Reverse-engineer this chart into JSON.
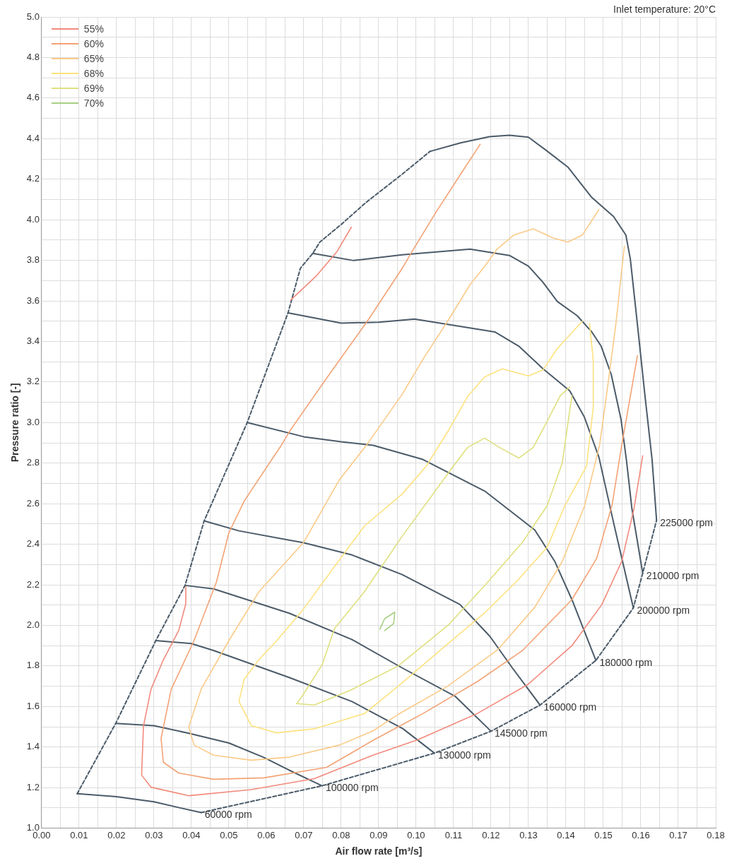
{
  "chart_data": {
    "type": "line",
    "xlabel": "Air flow rate [m³/s]",
    "ylabel": "Pressure ratio [-]",
    "xlim": [
      0,
      0.18
    ],
    "ylim": [
      1,
      5
    ],
    "xticks": [
      {
        "value": 0,
        "label": "0.00"
      },
      {
        "value": 0.005,
        "label": null
      },
      {
        "value": 0.01,
        "label": "0.01"
      },
      {
        "value": 0.015,
        "label": null
      },
      {
        "value": 0.02,
        "label": "0.02"
      },
      {
        "value": 0.025,
        "label": null
      },
      {
        "value": 0.03,
        "label": "0.03"
      },
      {
        "value": 0.035,
        "label": null
      },
      {
        "value": 0.04,
        "label": "0.04"
      },
      {
        "value": 0.045,
        "label": null
      },
      {
        "value": 0.05,
        "label": "0.05"
      },
      {
        "value": 0.055,
        "label": null
      },
      {
        "value": 0.06,
        "label": "0.06"
      },
      {
        "value": 0.065,
        "label": null
      },
      {
        "value": 0.07,
        "label": "0.07"
      },
      {
        "value": 0.075,
        "label": null
      },
      {
        "value": 0.08,
        "label": "0.08"
      },
      {
        "value": 0.085,
        "label": null
      },
      {
        "value": 0.09,
        "label": "0.09"
      },
      {
        "value": 0.095,
        "label": null
      },
      {
        "value": 0.1,
        "label": "0.10"
      },
      {
        "value": 0.105,
        "label": null
      },
      {
        "value": 0.11,
        "label": "0.11"
      },
      {
        "value": 0.115,
        "label": null
      },
      {
        "value": 0.12,
        "label": "0.12"
      },
      {
        "value": 0.125,
        "label": null
      },
      {
        "value": 0.13,
        "label": "0.13"
      },
      {
        "value": 0.135,
        "label": null
      },
      {
        "value": 0.14,
        "label": "0.14"
      },
      {
        "value": 0.145,
        "label": null
      },
      {
        "value": 0.15,
        "label": "0.15"
      },
      {
        "value": 0.155,
        "label": null
      },
      {
        "value": 0.16,
        "label": "0.16"
      },
      {
        "value": 0.165,
        "label": null
      },
      {
        "value": 0.17,
        "label": "0.17"
      },
      {
        "value": 0.175,
        "label": null
      },
      {
        "value": 0.18,
        "label": "0.18"
      }
    ],
    "yticks": [
      {
        "value": 1,
        "label": "1.0"
      },
      {
        "value": 1.1,
        "label": null
      },
      {
        "value": 1.2,
        "label": "1.2"
      },
      {
        "value": 1.3,
        "label": null
      },
      {
        "value": 1.4,
        "label": "1.4"
      },
      {
        "value": 1.5,
        "label": null
      },
      {
        "value": 1.6,
        "label": "1.6"
      },
      {
        "value": 1.7,
        "label": null
      },
      {
        "value": 1.8,
        "label": "1.8"
      },
      {
        "value": 1.9,
        "label": null
      },
      {
        "value": 2,
        "label": "2.0"
      },
      {
        "value": 2.1,
        "label": null
      },
      {
        "value": 2.2,
        "label": "2.2"
      },
      {
        "value": 2.3,
        "label": null
      },
      {
        "value": 2.4,
        "label": "2.4"
      },
      {
        "value": 2.5,
        "label": null
      },
      {
        "value": 2.6,
        "label": "2.6"
      },
      {
        "value": 2.7,
        "label": null
      },
      {
        "value": 2.8,
        "label": "2.8"
      },
      {
        "value": 2.9,
        "label": null
      },
      {
        "value": 3,
        "label": "3.0"
      },
      {
        "value": 3.1,
        "label": null
      },
      {
        "value": 3.2,
        "label": "3.2"
      },
      {
        "value": 3.3,
        "label": null
      },
      {
        "value": 3.4,
        "label": "3.4"
      },
      {
        "value": 3.5,
        "label": null
      },
      {
        "value": 3.6,
        "label": "3.6"
      },
      {
        "value": 3.7,
        "label": null
      },
      {
        "value": 3.8,
        "label": "3.8"
      },
      {
        "value": 3.9,
        "label": null
      },
      {
        "value": 4,
        "label": "4.0"
      },
      {
        "value": 4.1,
        "label": null
      },
      {
        "value": 4.2,
        "label": "4.2"
      },
      {
        "value": 4.3,
        "label": null
      },
      {
        "value": 4.4,
        "label": "4.4"
      },
      {
        "value": 4.5,
        "label": null
      },
      {
        "value": 4.6,
        "label": "4.6"
      },
      {
        "value": 4.7,
        "label": null
      },
      {
        "value": 4.8,
        "label": "4.8"
      },
      {
        "value": 4.9,
        "label": null
      },
      {
        "value": 5,
        "label": "5.0"
      }
    ],
    "grid": true,
    "legend": "top left",
    "marker": "none",
    "line_style": "solid",
    "series": [
      {
        "name": "55%",
        "color": "#f28a7c",
        "x": [
          0.0385,
          0.0385,
          0.0366,
          0.0325,
          0.0292,
          0.0272,
          0.0267,
          0.0292,
          0.0393,
          0.056,
          0.0728,
          0.0885,
          0.1004,
          0.1163,
          0.1298,
          0.1416,
          0.1496,
          0.1549,
          0.1582,
          0.1605,
          null,
          0.0665,
          0.0735,
          0.0788,
          0.0827
        ],
        "values": [
          2.19,
          2.106,
          1.974,
          1.83,
          1.684,
          1.503,
          1.262,
          1.202,
          1.16,
          1.19,
          1.244,
          1.36,
          1.436,
          1.565,
          1.708,
          1.9,
          2.103,
          2.316,
          2.578,
          2.836,
          null,
          3.604,
          3.726,
          3.841,
          3.963
        ]
      },
      {
        "name": "60%",
        "color": "#f4a274",
        "x": [
          0.1171,
          0.1119,
          0.1054,
          0.0988,
          0.0963,
          0.0872,
          0.0768,
          0.0665,
          0.064,
          0.0541,
          0.05,
          0.0467,
          0.0407,
          0.0346,
          0.0319,
          0.0325,
          0.0366,
          0.0459,
          0.0593,
          0.0761,
          0.0885,
          0.1018,
          0.1163,
          0.1284,
          0.1416,
          0.1482,
          0.1523,
          0.1549,
          0.1591
        ],
        "values": [
          4.372,
          4.225,
          4.04,
          3.84,
          3.761,
          3.506,
          3.237,
          2.965,
          2.888,
          2.613,
          2.456,
          2.215,
          1.925,
          1.684,
          1.443,
          1.325,
          1.272,
          1.241,
          1.248,
          1.3,
          1.433,
          1.565,
          1.722,
          1.876,
          2.127,
          2.33,
          2.592,
          2.888,
          3.33
        ]
      },
      {
        "name": "65%",
        "color": "#fbca88",
        "x": [
          0.1488,
          0.1444,
          0.1405,
          0.1366,
          0.1313,
          0.1261,
          0.1216,
          0.1183,
          0.1144,
          0.1086,
          0.1021,
          0.0963,
          0.0868,
          0.0796,
          0.07,
          0.058,
          0.05,
          0.0426,
          0.0393,
          0.0407,
          0.0459,
          0.056,
          0.0661,
          0.0796,
          0.0885,
          0.0951,
          0.1084,
          0.1218,
          0.1317,
          0.139,
          0.145,
          0.149,
          0.1508,
          0.1533,
          0.1556
        ],
        "values": [
          4.05,
          3.925,
          3.89,
          3.91,
          3.955,
          3.925,
          3.855,
          3.77,
          3.68,
          3.505,
          3.32,
          3.14,
          2.89,
          2.72,
          2.41,
          2.165,
          1.925,
          1.685,
          1.5,
          1.41,
          1.36,
          1.335,
          1.35,
          1.41,
          1.48,
          1.56,
          1.7,
          1.88,
          2.09,
          2.315,
          2.59,
          2.89,
          3.13,
          3.48,
          3.87
        ]
      },
      {
        "name": "68%",
        "color": "#fde27e",
        "x": [
          0.1444,
          0.1377,
          0.1339,
          0.13,
          0.123,
          0.1183,
          0.1138,
          0.1086,
          0.1027,
          0.0963,
          0.0862,
          0.0782,
          0.0695,
          0.0628,
          0.058,
          0.0541,
          0.0527,
          0.056,
          0.0628,
          0.0728,
          0.0862,
          0.0952,
          0.1085,
          0.1185,
          0.127,
          0.135,
          0.1397,
          0.1455,
          0.1473,
          0.1473,
          0.1463
        ],
        "values": [
          3.5,
          3.365,
          3.26,
          3.23,
          3.265,
          3.225,
          3.13,
          2.96,
          2.785,
          2.648,
          2.49,
          2.29,
          2.07,
          1.925,
          1.83,
          1.735,
          1.625,
          1.505,
          1.47,
          1.49,
          1.565,
          1.7,
          1.91,
          2.065,
          2.22,
          2.385,
          2.59,
          2.785,
          3.075,
          3.305,
          3.49
        ]
      },
      {
        "name": "69%",
        "color": "#dfe07e",
        "x": [
          0.141,
          0.1385,
          0.1346,
          0.1313,
          0.1274,
          0.1222,
          0.1183,
          0.1138,
          0.1099,
          0.0963,
          0.0862,
          0.0782,
          0.0749,
          0.0695,
          0.0681,
          0.0728,
          0.0829,
          0.0952,
          0.1085,
          0.1185,
          0.1284,
          0.135,
          0.139,
          0.1416
        ],
        "values": [
          3.175,
          3.133,
          2.993,
          2.878,
          2.825,
          2.878,
          2.923,
          2.878,
          2.784,
          2.44,
          2.166,
          1.984,
          1.806,
          1.649,
          1.614,
          1.607,
          1.684,
          1.8,
          2,
          2.2,
          2.41,
          2.59,
          2.8,
          3.133
        ]
      },
      {
        "name": "70%",
        "color": "#a8cf84",
        "x": [
          0.0903,
          0.0916,
          0.0943,
          0.094,
          0.0916
        ],
        "values": [
          1.981,
          2.033,
          2.065,
          2.009,
          1.974
        ]
      },
      {
        "color": "#4b5b69",
        "x": [
          0.0095,
          0.02,
          0.03,
          0.037,
          0.0426
        ],
        "values": [
          1.17,
          1.155,
          1.13,
          1.1,
          1.077
        ]
      },
      {
        "color": "#4b5b69",
        "x": [
          0.0198,
          0.03,
          0.0393,
          0.05,
          0.0593,
          0.0661,
          0.0749
        ],
        "values": [
          1.517,
          1.505,
          1.468,
          1.42,
          1.349,
          1.286,
          1.209
        ]
      },
      {
        "color": "#4b5b69",
        "x": [
          0.0305,
          0.04,
          0.0459,
          0.0661,
          0.0829,
          0.0965,
          0.1049
        ],
        "values": [
          1.925,
          1.91,
          1.876,
          1.743,
          1.624,
          1.49,
          1.37
        ]
      },
      {
        "color": "#4b5b69",
        "x": [
          0.0383,
          0.0459,
          0.0661,
          0.0829,
          0.0963,
          0.1105,
          0.12
        ],
        "values": [
          2.197,
          2.18,
          2.06,
          1.93,
          1.79,
          1.649,
          1.478
        ]
      },
      {
        "color": "#4b5b69",
        "x": [
          0.0434,
          0.0527,
          0.07,
          0.0829,
          0.0963,
          0.1117,
          0.1197,
          0.1257,
          0.1331
        ],
        "values": [
          2.515,
          2.466,
          2.407,
          2.347,
          2.25,
          2.103,
          1.946,
          1.79,
          1.607
        ]
      },
      {
        "color": "#4b5b69",
        "x": [
          0.0549,
          0.07,
          0.08,
          0.0885,
          0.1018,
          0.1185,
          0.1317,
          0.137,
          0.1416,
          0.148
        ],
        "values": [
          3,
          2.93,
          2.905,
          2.888,
          2.818,
          2.66,
          2.47,
          2.316,
          2.127,
          1.827
        ]
      },
      {
        "color": "#4b5b69",
        "x": [
          0.0658,
          0.08,
          0.09,
          0.0996,
          0.121,
          0.1274,
          0.1339,
          0.141,
          0.1449,
          0.1488,
          0.1528,
          0.158
        ],
        "values": [
          3.541,
          3.49,
          3.495,
          3.51,
          3.447,
          3.377,
          3.265,
          3.157,
          3.028,
          2.83,
          2.5,
          2.086
        ]
      },
      {
        "color": "#4b5b69",
        "x": [
          0.0724,
          0.0833,
          0.0963,
          0.1144,
          0.1249,
          0.13,
          0.1339,
          0.1377,
          0.143,
          0.1469,
          0.1494,
          0.1521,
          0.1547,
          0.1562,
          0.1576,
          0.1605
        ],
        "values": [
          3.834,
          3.799,
          3.827,
          3.855,
          3.824,
          3.771,
          3.691,
          3.597,
          3.527,
          3.447,
          3.377,
          3.237,
          3.017,
          2.808,
          2.578,
          2.257
        ]
      },
      {
        "color": "#4b5b69",
        "x": [
          0.1037,
          0.1119,
          0.1196,
          0.1249,
          0.13,
          0.1346,
          0.1405,
          0.1469,
          0.1527,
          0.156,
          0.1572,
          0.1591,
          0.1611,
          0.163,
          0.1642
        ],
        "values": [
          4.337,
          4.379,
          4.41,
          4.417,
          4.407,
          4.344,
          4.26,
          4.11,
          4.016,
          3.925,
          3.806,
          3.482,
          3.133,
          2.818,
          2.518
        ]
      },
      {
        "color": "#4b5b69",
        "line_style": "dashed",
        "x": [
          0.0095,
          0.0198,
          0.0305,
          0.0383,
          0.0434,
          0.0549,
          0.0658,
          0.0691,
          0.0724,
          0.0743,
          0.0802,
          0.0866,
          0.0963,
          0.1037
        ],
        "values": [
          1.17,
          1.517,
          1.925,
          2.197,
          2.515,
          3,
          3.541,
          3.761,
          3.834,
          3.89,
          3.98,
          4.085,
          4.225,
          4.337
        ]
      },
      {
        "color": "#4b5b69",
        "line_style": "dashed",
        "x": [
          0.0426,
          0.0749,
          0.1049,
          0.12,
          0.1331,
          0.148,
          0.158,
          0.1605,
          0.1642
        ],
        "values": [
          1.077,
          1.209,
          1.37,
          1.478,
          1.607,
          1.827,
          2.086,
          2.257,
          2.518
        ]
      }
    ],
    "annotations": [
      "Inlet temperature: 20°C",
      {
        "text": "60000 rpm",
        "x": 0.0426,
        "y": 1.077
      },
      {
        "text": "100000 rpm",
        "x": 0.0749,
        "y": 1.209
      },
      {
        "text": "130000 rpm",
        "x": 0.1049,
        "y": 1.37
      },
      {
        "text": "145000 rpm",
        "x": 0.12,
        "y": 1.478
      },
      {
        "text": "160000 rpm",
        "x": 0.1331,
        "y": 1.607
      },
      {
        "text": "180000 rpm",
        "x": 0.148,
        "y": 1.827
      },
      {
        "text": "200000 rpm",
        "x": 0.158,
        "y": 2.086
      },
      {
        "text": "210000 rpm",
        "x": 0.1605,
        "y": 2.257
      },
      {
        "text": "225000 rpm",
        "x": 0.1642,
        "y": 2.518
      }
    ]
  }
}
